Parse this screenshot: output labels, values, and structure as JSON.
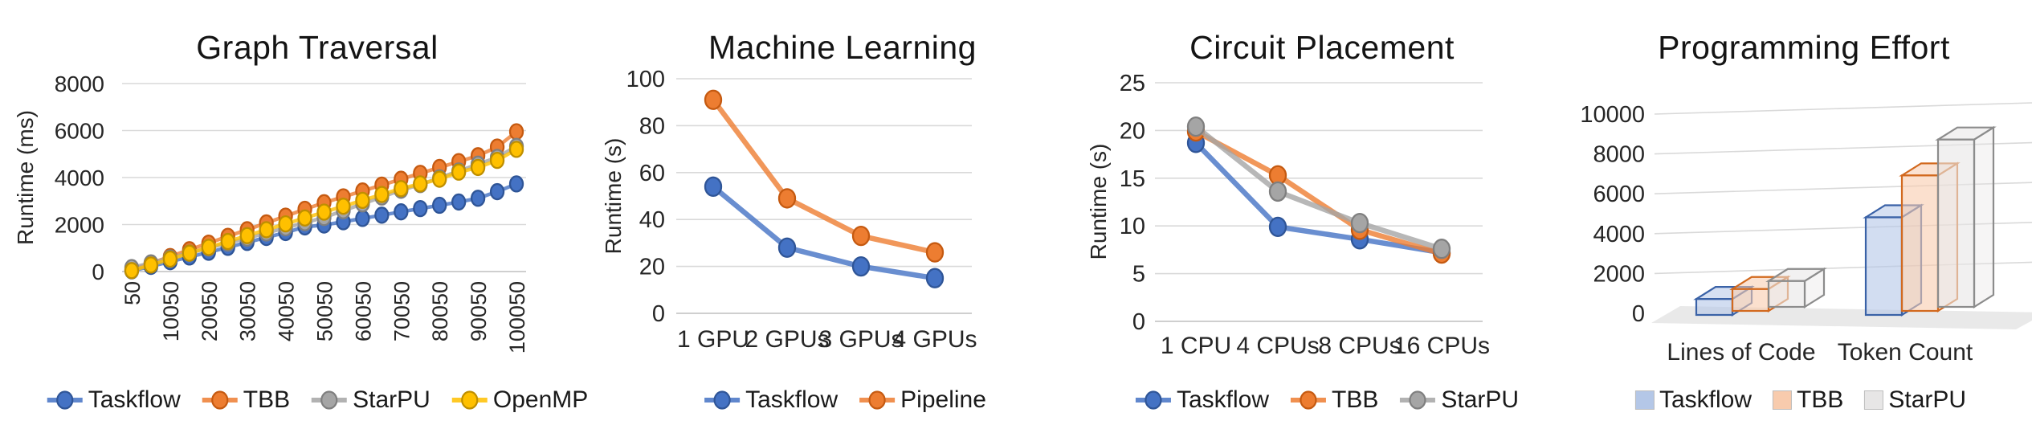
{
  "figure": {
    "background": "#ffffff",
    "grid_color": "#d9d9d9",
    "axis_line_color": "#bfbfbf",
    "text_color": "#262626"
  },
  "charts": [
    {
      "title": "Graph Traversal",
      "y_axis_label": "Runtime (ms)",
      "legend": [
        "Taskflow",
        "TBB",
        "StarPU",
        "OpenMP"
      ],
      "chart_data": {
        "type": "line",
        "x": [
          50,
          5050,
          10050,
          15050,
          20050,
          25050,
          30050,
          35050,
          40050,
          45050,
          50050,
          55050,
          60050,
          65050,
          70050,
          75050,
          80050,
          85050,
          90050,
          95050,
          100050
        ],
        "x_tick_labels": [
          "50",
          "10050",
          "20050",
          "30050",
          "40050",
          "50050",
          "60050",
          "70050",
          "80050",
          "90050",
          "100050"
        ],
        "x_tick_every": 2,
        "x_ticks_rotated": true,
        "ylim": [
          0,
          8000
        ],
        "yticks": [
          0,
          2000,
          4000,
          6000,
          8000
        ],
        "grid": true,
        "legend_position": "bottom",
        "series": [
          {
            "name": "Taskflow",
            "color": "#4472C4",
            "edge": "#2F5597",
            "values": [
              30,
              220,
              420,
              620,
              820,
              1030,
              1240,
              1450,
              1660,
              1900,
              1980,
              2120,
              2260,
              2400,
              2540,
              2680,
              2820,
              2960,
              3120,
              3400,
              3730
            ]
          },
          {
            "name": "TBB",
            "color": "#ED7D31",
            "edge": "#C55A11",
            "values": [
              80,
              350,
              640,
              930,
              1210,
              1500,
              1780,
              2070,
              2360,
              2650,
              2930,
              3180,
              3430,
              3680,
              3930,
              4180,
              4430,
              4680,
              4930,
              5300,
              5950
            ]
          },
          {
            "name": "StarPU",
            "color": "#A5A5A5",
            "edge": "#7F7F7F",
            "values": [
              170,
              370,
              580,
              790,
              1000,
              1210,
              1420,
              1640,
              1860,
              2080,
              2300,
              2590,
              2880,
              3170,
              3460,
              3700,
              3990,
              4280,
              4570,
              4860,
              5330
            ]
          },
          {
            "name": "OpenMP",
            "color": "#FFC000",
            "edge": "#BF8F00",
            "values": [
              40,
              280,
              530,
              780,
              1030,
              1280,
              1530,
              1780,
              2030,
              2280,
              2530,
              2780,
              3030,
              3280,
              3530,
              3730,
              3930,
              4230,
              4430,
              4730,
              5200
            ]
          }
        ]
      }
    },
    {
      "title": "Machine Learning",
      "y_axis_label": "Runtime (s)",
      "legend": [
        "Taskflow",
        "Pipeline"
      ],
      "chart_data": {
        "type": "line",
        "categories": [
          "1 GPU",
          "2 GPUs",
          "3 GPUs",
          "4 GPUs"
        ],
        "ylim": [
          0,
          100
        ],
        "yticks": [
          0,
          20,
          40,
          60,
          80,
          100
        ],
        "grid": true,
        "legend_position": "bottom",
        "series": [
          {
            "name": "Taskflow",
            "color": "#4472C4",
            "edge": "#2F5597",
            "values": [
              54,
              28,
              20,
              15
            ]
          },
          {
            "name": "Pipeline",
            "color": "#ED7D31",
            "edge": "#C55A11",
            "values": [
              91,
              49,
              33,
              26
            ]
          }
        ]
      }
    },
    {
      "title": "Circuit Placement",
      "y_axis_label": "Runtime (s)",
      "legend": [
        "Taskflow",
        "TBB",
        "StarPU"
      ],
      "chart_data": {
        "type": "line",
        "categories": [
          "1 CPU",
          "4 CPUs",
          "8 CPUs",
          "16 CPUs"
        ],
        "ylim": [
          0,
          25
        ],
        "yticks": [
          0,
          5,
          10,
          15,
          20,
          25
        ],
        "grid": true,
        "legend_position": "bottom",
        "series": [
          {
            "name": "Taskflow",
            "color": "#4472C4",
            "edge": "#2F5597",
            "values": [
              18.7,
              9.9,
              8.6,
              7.2
            ]
          },
          {
            "name": "TBB",
            "color": "#ED7D31",
            "edge": "#C55A11",
            "values": [
              19.9,
              15.3,
              9.6,
              7.1
            ]
          },
          {
            "name": "StarPU",
            "color": "#A5A5A5",
            "edge": "#7F7F7F",
            "values": [
              20.4,
              13.6,
              10.3,
              7.6
            ]
          }
        ]
      }
    },
    {
      "title": "Programming Effort",
      "y_axis_label": "",
      "legend": [
        "Taskflow",
        "TBB",
        "StarPU"
      ],
      "chart_data": {
        "type": "bar",
        "projection": "3d",
        "categories": [
          "Lines of Code",
          "Token Count"
        ],
        "ylim": [
          0,
          10000
        ],
        "yticks": [
          0,
          2000,
          4000,
          6000,
          8000,
          10000
        ],
        "grid": true,
        "legend_position": "bottom",
        "series": [
          {
            "name": "Taskflow",
            "fill": "#B4C7E7",
            "edge": "#3A62A7",
            "values": [
              800,
              4900
            ]
          },
          {
            "name": "TBB",
            "fill": "#F8CBAD",
            "edge": "#D2691E",
            "values": [
              1100,
              6800
            ]
          },
          {
            "name": "StarPU",
            "fill": "#E7E6E6",
            "edge": "#8C8C8C",
            "values": [
              1300,
              8400
            ]
          }
        ]
      }
    }
  ]
}
